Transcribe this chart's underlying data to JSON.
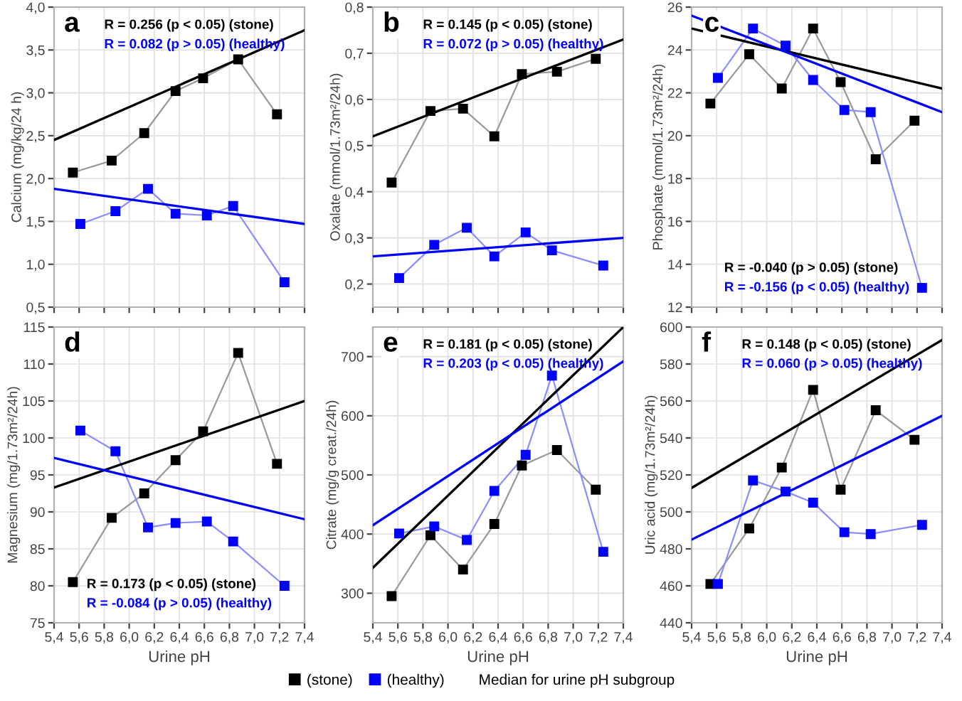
{
  "chart_data": [
    {
      "type": "line",
      "ylabel": "Calcium (mg/kg/24 h)",
      "marker": "square",
      "grid": true,
      "tick_labels": "y",
      "legend": "bottom",
      "legend_title": "Median for urine pH subgroup",
      "annotations": [
        "a",
        "R = 0.256 (p < 0.05) (stone)",
        "R = 0.082 (p > 0.05) (healthy)"
      ],
      "xlim": [
        5.4,
        7.4
      ],
      "xticks": [
        {
          "value": 5.4,
          "label": "5,4"
        },
        {
          "value": 5.6,
          "label": "5,6"
        },
        {
          "value": 5.8,
          "label": "5,8"
        },
        {
          "value": 6.0,
          "label": "6,0"
        },
        {
          "value": 6.2,
          "label": "6,2"
        },
        {
          "value": 6.4,
          "label": "6,4"
        },
        {
          "value": 6.6,
          "label": "6,6"
        },
        {
          "value": 6.8,
          "label": "6,8"
        },
        {
          "value": 7.0,
          "label": "7,0"
        },
        {
          "value": 7.2,
          "label": "7,2"
        },
        {
          "value": 7.4,
          "label": "7,4"
        }
      ],
      "ylim": [
        0.5,
        4.0
      ],
      "yticks": [
        {
          "value": 0.5,
          "label": "0,5"
        },
        {
          "value": 1.0,
          "label": "1,0"
        },
        {
          "value": 1.5,
          "label": "1,5"
        },
        {
          "value": 2.0,
          "label": "2,0"
        },
        {
          "value": 2.5,
          "label": "2,5"
        },
        {
          "value": 3.0,
          "label": "3,0"
        },
        {
          "value": 3.5,
          "label": "3,5"
        },
        {
          "value": 4.0,
          "label": "4,0"
        }
      ],
      "series": [
        {
          "name": "(stone)",
          "color": "#000000",
          "x": [
            5.55,
            5.86,
            6.12,
            6.37,
            6.59,
            6.87,
            7.18
          ],
          "values": [
            2.07,
            2.21,
            2.53,
            3.02,
            3.17,
            3.39,
            2.75
          ]
        },
        {
          "name": "(healthy)",
          "color": "#0000ff",
          "x": [
            5.61,
            5.89,
            6.15,
            6.37,
            6.62,
            6.83,
            7.24
          ],
          "values": [
            1.47,
            1.62,
            1.88,
            1.59,
            1.57,
            1.68,
            0.79
          ]
        },
        {
          "type": "line",
          "marker": "none",
          "color": "#000000",
          "x": [
            5.4,
            7.4
          ],
          "values": [
            2.45,
            3.73
          ]
        },
        {
          "type": "line",
          "marker": "none",
          "color": "#0000ff",
          "x": [
            5.4,
            7.4
          ],
          "values": [
            1.88,
            1.47
          ]
        }
      ]
    },
    {
      "type": "line",
      "ylabel": "Oxalate (mmol/1.73m²/24h)",
      "marker": "square",
      "grid": true,
      "tick_labels": "y",
      "legend": "bottom",
      "annotations": [
        "b",
        "R = 0.145 (p < 0.05) (stone)",
        "R = 0.072 (p > 0.05) (healthy)"
      ],
      "xlim": [
        5.4,
        7.4
      ],
      "xticks": [
        {
          "value": 5.4,
          "label": "5,4"
        },
        {
          "value": 5.6,
          "label": "5,6"
        },
        {
          "value": 5.8,
          "label": "5,8"
        },
        {
          "value": 6.0,
          "label": "6,0"
        },
        {
          "value": 6.2,
          "label": "6,2"
        },
        {
          "value": 6.4,
          "label": "6,4"
        },
        {
          "value": 6.6,
          "label": "6,6"
        },
        {
          "value": 6.8,
          "label": "6,8"
        },
        {
          "value": 7.0,
          "label": "7,0"
        },
        {
          "value": 7.2,
          "label": "7,2"
        },
        {
          "value": 7.4,
          "label": "7,4"
        }
      ],
      "ylim": [
        0.15,
        0.8
      ],
      "yticks": [
        {
          "value": 0.2,
          "label": "0,2"
        },
        {
          "value": 0.3,
          "label": "0,3"
        },
        {
          "value": 0.4,
          "label": "0,4"
        },
        {
          "value": 0.5,
          "label": "0,5"
        },
        {
          "value": 0.6,
          "label": "0,6"
        },
        {
          "value": 0.7,
          "label": "0,7"
        },
        {
          "value": 0.8,
          "label": "0,8"
        }
      ],
      "series": [
        {
          "name": "(stone)",
          "color": "#000000",
          "x": [
            5.55,
            5.86,
            6.12,
            6.37,
            6.59,
            6.87,
            7.18
          ],
          "values": [
            0.42,
            0.575,
            0.58,
            0.52,
            0.655,
            0.66,
            0.688
          ]
        },
        {
          "name": "(healthy)",
          "color": "#0000ff",
          "x": [
            5.61,
            5.89,
            6.15,
            6.37,
            6.62,
            6.83,
            7.24
          ],
          "values": [
            0.213,
            0.285,
            0.322,
            0.26,
            0.312,
            0.273,
            0.24
          ]
        },
        {
          "type": "line",
          "marker": "none",
          "color": "#000000",
          "x": [
            5.4,
            7.4
          ],
          "values": [
            0.52,
            0.73
          ]
        },
        {
          "type": "line",
          "marker": "none",
          "color": "#0000ff",
          "x": [
            5.4,
            7.4
          ],
          "values": [
            0.26,
            0.3
          ]
        }
      ]
    },
    {
      "type": "line",
      "ylabel": "Phosphate (mmol/1.73m²/24h)",
      "marker": "square",
      "grid": true,
      "tick_labels": "y",
      "legend": "bottom",
      "annotations": [
        "c",
        "R = -0.040 (p > 0.05) (stone)",
        "R = -0.156 (p < 0.05) (healthy)"
      ],
      "xlim": [
        5.4,
        7.4
      ],
      "xticks": [
        {
          "value": 5.4,
          "label": "5,4"
        },
        {
          "value": 5.6,
          "label": "5,6"
        },
        {
          "value": 5.8,
          "label": "5,8"
        },
        {
          "value": 6.0,
          "label": "6,0"
        },
        {
          "value": 6.2,
          "label": "6,2"
        },
        {
          "value": 6.4,
          "label": "6,4"
        },
        {
          "value": 6.6,
          "label": "6,6"
        },
        {
          "value": 6.8,
          "label": "6,8"
        },
        {
          "value": 7.0,
          "label": "7,0"
        },
        {
          "value": 7.2,
          "label": "7,2"
        },
        {
          "value": 7.4,
          "label": "7,4"
        }
      ],
      "ylim": [
        12,
        26
      ],
      "yticks": [
        12,
        14,
        16,
        18,
        20,
        22,
        24,
        26
      ],
      "series": [
        {
          "name": "(stone)",
          "color": "#000000",
          "x": [
            5.55,
            5.86,
            6.12,
            6.37,
            6.59,
            6.87,
            7.18
          ],
          "values": [
            21.5,
            23.8,
            22.2,
            25.0,
            22.5,
            18.9,
            20.7
          ]
        },
        {
          "name": "(healthy)",
          "color": "#0000ff",
          "x": [
            5.61,
            5.89,
            6.15,
            6.37,
            6.62,
            6.83,
            7.24
          ],
          "values": [
            22.7,
            25.0,
            24.2,
            22.6,
            21.2,
            21.1,
            12.9
          ]
        },
        {
          "type": "line",
          "marker": "none",
          "color": "#000000",
          "x": [
            5.4,
            7.4
          ],
          "values": [
            25.0,
            22.2
          ]
        },
        {
          "type": "line",
          "marker": "none",
          "color": "#0000ff",
          "x": [
            5.4,
            7.4
          ],
          "values": [
            25.6,
            21.1
          ]
        }
      ]
    },
    {
      "type": "line",
      "ylabel": "Magnesium (mg/1.73m²/24h)",
      "xlabel": "Urine pH",
      "marker": "square",
      "grid": true,
      "legend": "bottom",
      "annotations": [
        "d",
        "R = 0.173 (p < 0.05) (stone)",
        "R = -0.084 (p > 0.05) (healthy)"
      ],
      "xlim": [
        5.4,
        7.4
      ],
      "xticks": [
        {
          "value": 5.4,
          "label": "5,4"
        },
        {
          "value": 5.6,
          "label": "5,6"
        },
        {
          "value": 5.8,
          "label": "5,8"
        },
        {
          "value": 6.0,
          "label": "6,0"
        },
        {
          "value": 6.2,
          "label": "6,2"
        },
        {
          "value": 6.4,
          "label": "6,4"
        },
        {
          "value": 6.6,
          "label": "6,6"
        },
        {
          "value": 6.8,
          "label": "6,8"
        },
        {
          "value": 7.0,
          "label": "7,0"
        },
        {
          "value": 7.2,
          "label": "7,2"
        },
        {
          "value": 7.4,
          "label": "7,4"
        }
      ],
      "ylim": [
        75,
        115
      ],
      "yticks": [
        75,
        80,
        85,
        90,
        95,
        100,
        105,
        110,
        115
      ],
      "series": [
        {
          "name": "(stone)",
          "color": "#000000",
          "x": [
            5.55,
            5.86,
            6.12,
            6.37,
            6.59,
            6.87,
            7.18
          ],
          "values": [
            80.5,
            89.2,
            92.5,
            97.0,
            100.9,
            111.5,
            96.5
          ]
        },
        {
          "name": "(healthy)",
          "color": "#0000ff",
          "x": [
            5.61,
            5.89,
            6.15,
            6.37,
            6.62,
            6.83,
            7.24
          ],
          "values": [
            101.0,
            98.2,
            87.9,
            88.5,
            88.7,
            86.0,
            80.0
          ]
        },
        {
          "type": "line",
          "marker": "none",
          "color": "#000000",
          "x": [
            5.4,
            7.4
          ],
          "values": [
            93.3,
            105.0
          ]
        },
        {
          "type": "line",
          "marker": "none",
          "color": "#0000ff",
          "x": [
            5.4,
            7.4
          ],
          "values": [
            97.3,
            89.0
          ]
        }
      ]
    },
    {
      "type": "line",
      "ylabel": "Citrate (mg/g creat./24h)",
      "xlabel": "Urine pH",
      "marker": "square",
      "grid": true,
      "legend": "bottom",
      "annotations": [
        "e",
        "R = 0.181 (p < 0.05) (stone)",
        "R = 0.203 (p < 0.05) (healthy)"
      ],
      "xlim": [
        5.4,
        7.4
      ],
      "xticks": [
        {
          "value": 5.4,
          "label": "5,4"
        },
        {
          "value": 5.6,
          "label": "5,6"
        },
        {
          "value": 5.8,
          "label": "5,8"
        },
        {
          "value": 6.0,
          "label": "6,0"
        },
        {
          "value": 6.2,
          "label": "6,2"
        },
        {
          "value": 6.4,
          "label": "6,4"
        },
        {
          "value": 6.6,
          "label": "6,6"
        },
        {
          "value": 6.8,
          "label": "6,8"
        },
        {
          "value": 7.0,
          "label": "7,0"
        },
        {
          "value": 7.2,
          "label": "7,2"
        },
        {
          "value": 7.4,
          "label": "7,4"
        }
      ],
      "ylim": [
        250,
        750
      ],
      "yticks": [
        300,
        400,
        500,
        600,
        700
      ],
      "series": [
        {
          "name": "(stone)",
          "color": "#000000",
          "x": [
            5.55,
            5.86,
            6.12,
            6.37,
            6.59,
            6.87,
            7.18
          ],
          "values": [
            295,
            398,
            340,
            417,
            516,
            542,
            475
          ]
        },
        {
          "name": "(healthy)",
          "color": "#0000ff",
          "x": [
            5.61,
            5.89,
            6.15,
            6.37,
            6.62,
            6.83,
            7.24
          ],
          "values": [
            401,
            413,
            390,
            473,
            534,
            668,
            370
          ]
        },
        {
          "type": "line",
          "marker": "none",
          "color": "#000000",
          "x": [
            5.4,
            7.4
          ],
          "values": [
            343,
            750
          ]
        },
        {
          "type": "line",
          "marker": "none",
          "color": "#0000ff",
          "x": [
            5.4,
            7.4
          ],
          "values": [
            415,
            692
          ]
        }
      ]
    },
    {
      "type": "line",
      "ylabel": "Uric acid (mg/1.73m²/24h)",
      "xlabel": "Urine pH",
      "marker": "square",
      "grid": true,
      "legend": "bottom",
      "annotations": [
        "f",
        "R = 0.148 (p < 0.05) (stone)",
        "R = 0.060 (p > 0.05) (healthy)"
      ],
      "xlim": [
        5.4,
        7.4
      ],
      "xticks": [
        {
          "value": 5.4,
          "label": "5,4"
        },
        {
          "value": 5.6,
          "label": "5,6"
        },
        {
          "value": 5.8,
          "label": "5,8"
        },
        {
          "value": 6.0,
          "label": "6,0"
        },
        {
          "value": 6.2,
          "label": "6,2"
        },
        {
          "value": 6.4,
          "label": "6,4"
        },
        {
          "value": 6.6,
          "label": "6,6"
        },
        {
          "value": 6.8,
          "label": "6,8"
        },
        {
          "value": 7.0,
          "label": "7,0"
        },
        {
          "value": 7.2,
          "label": "7,2"
        },
        {
          "value": 7.4,
          "label": "7,4"
        }
      ],
      "ylim": [
        440,
        600
      ],
      "yticks": [
        440,
        460,
        480,
        500,
        520,
        540,
        560,
        580,
        600
      ],
      "series": [
        {
          "name": "(stone)",
          "color": "#000000",
          "x": [
            5.55,
            5.86,
            6.12,
            6.37,
            6.59,
            6.87,
            7.18
          ],
          "values": [
            461,
            491,
            524,
            566,
            512,
            555,
            539
          ]
        },
        {
          "name": "(healthy)",
          "color": "#0000ff",
          "x": [
            5.61,
            5.89,
            6.15,
            6.37,
            6.62,
            6.83,
            7.24
          ],
          "values": [
            461,
            517,
            511,
            505,
            489,
            488,
            493
          ]
        },
        {
          "type": "line",
          "marker": "none",
          "color": "#000000",
          "x": [
            5.4,
            7.4
          ],
          "values": [
            513,
            593
          ]
        },
        {
          "type": "line",
          "marker": "none",
          "color": "#0000ff",
          "x": [
            5.4,
            7.4
          ],
          "values": [
            485,
            552
          ]
        }
      ]
    }
  ]
}
